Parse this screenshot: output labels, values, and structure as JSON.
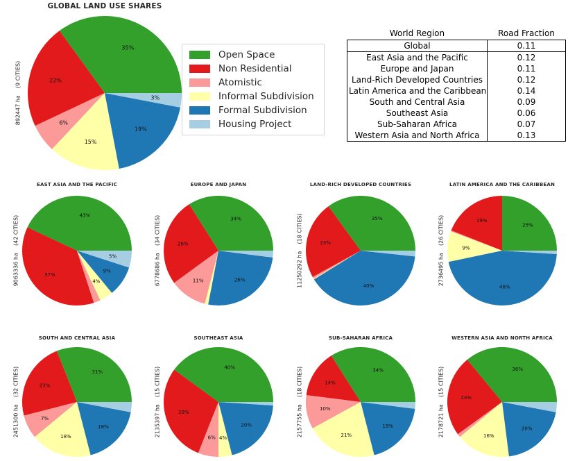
{
  "slice_colors": [
    "#33a02c",
    "#e31a1c",
    "#fb9a99",
    "#ffffa8",
    "#1f78b4",
    "#a6cee3"
  ],
  "legend": {
    "items": [
      {
        "label": "Open Space",
        "color": "#33a02c"
      },
      {
        "label": "Non Residential",
        "color": "#e31a1c"
      },
      {
        "label": "Atomistic",
        "color": "#fb9a99"
      },
      {
        "label": "Informal Subdivision",
        "color": "#ffffa8"
      },
      {
        "label": "Formal Subdivision",
        "color": "#1f78b4"
      },
      {
        "label": "Housing Project",
        "color": "#a6cee3"
      }
    ]
  },
  "table": {
    "headers": [
      "World Region",
      "Road Fraction"
    ],
    "rows": [
      [
        "Global",
        "0.11"
      ],
      [
        "East Asia and the Pacific",
        "0.12"
      ],
      [
        "Europe and Japan",
        "0.11"
      ],
      [
        "Land-Rich Developed Countries",
        "0.12"
      ],
      [
        "Latin America and the Caribbean",
        "0.14"
      ],
      [
        "South and Central Asia",
        "0.09"
      ],
      [
        "Southeast Asia",
        "0.06"
      ],
      [
        "Sub-Saharan Africa",
        "0.07"
      ],
      [
        "Western Asia and North Africa",
        "0.13"
      ]
    ]
  },
  "chart_data": [
    {
      "type": "pie",
      "title": "GLOBAL LAND USE SHARES",
      "ylabel": "892447 ha    (9 CITIES)",
      "categories": [
        "Open Space",
        "Non Residential",
        "Atomistic",
        "Informal Subdivision",
        "Formal Subdivision",
        "Housing Project"
      ],
      "values": [
        35,
        22,
        6,
        15,
        19,
        3
      ],
      "labels": [
        "35%",
        "22%",
        "6%",
        "15%",
        "19%",
        "3%"
      ],
      "start_angle_deg": 0,
      "direction": "counterclockwise"
    },
    {
      "type": "pie",
      "title": "EAST ASIA AND THE PACIFIC",
      "ylabel": "9063336 ha    (42 CITIES)",
      "categories": [
        "Open Space",
        "Non Residential",
        "Atomistic",
        "Informal Subdivision",
        "Formal Subdivision",
        "Housing Project"
      ],
      "values": [
        43,
        37,
        2,
        4,
        9,
        5
      ],
      "labels": [
        "43%",
        "37%",
        "",
        "4%",
        "9%",
        "5%"
      ],
      "start_angle_deg": 0,
      "direction": "counterclockwise"
    },
    {
      "type": "pie",
      "title": "EUROPE AND JAPAN",
      "ylabel": "6778686 ha    (34 CITIES)",
      "categories": [
        "Open Space",
        "Non Residential",
        "Atomistic",
        "Informal Subdivision",
        "Formal Subdivision",
        "Housing Project"
      ],
      "values": [
        34,
        26,
        11,
        1,
        26,
        2
      ],
      "labels": [
        "34%",
        "26%",
        "11%",
        "",
        "26%",
        ""
      ],
      "start_angle_deg": 0,
      "direction": "counterclockwise"
    },
    {
      "type": "pie",
      "title": "LAND-RICH DEVELOPED COUNTRIES",
      "ylabel": "11250292 ha    (18 CITIES)",
      "categories": [
        "Open Space",
        "Non Residential",
        "Atomistic",
        "Informal Subdivision",
        "Formal Subdivision",
        "Housing Project"
      ],
      "values": [
        35,
        23,
        0.6,
        0.2,
        39.5,
        1.7
      ],
      "labels": [
        "35%",
        "23%",
        "",
        "",
        "40%",
        ""
      ],
      "start_angle_deg": 0,
      "direction": "counterclockwise"
    },
    {
      "type": "pie",
      "title": "LATIN AMERICA AND THE CARIBBEAN",
      "ylabel": "2736495 ha    (26 CITIES)",
      "categories": [
        "Open Space",
        "Non Residential",
        "Atomistic",
        "Informal Subdivision",
        "Formal Subdivision",
        "Housing Project"
      ],
      "values": [
        25,
        19,
        0.3,
        9,
        45.7,
        1
      ],
      "labels": [
        "25%",
        "19%",
        "",
        "9%",
        "46%",
        ""
      ],
      "start_angle_deg": 0,
      "direction": "counterclockwise"
    },
    {
      "type": "pie",
      "title": "SOUTH AND CENTRAL ASIA",
      "ylabel": "2451300 ha    (32 CITIES)",
      "categories": [
        "Open Space",
        "Non Residential",
        "Atomistic",
        "Informal Subdivision",
        "Formal Subdivision",
        "Housing Project"
      ],
      "values": [
        31,
        23,
        7,
        18,
        18,
        3
      ],
      "labels": [
        "31%",
        "23%",
        "7%",
        "18%",
        "18%",
        ""
      ],
      "start_angle_deg": 0,
      "direction": "counterclockwise"
    },
    {
      "type": "pie",
      "title": "SOUTHEAST ASIA",
      "ylabel": "2135397 ha    (15 CITIES)",
      "categories": [
        "Open Space",
        "Non Residential",
        "Atomistic",
        "Informal Subdivision",
        "Formal Subdivision",
        "Housing Project"
      ],
      "values": [
        40,
        29,
        6,
        4,
        20,
        1
      ],
      "labels": [
        "40%",
        "29%",
        "6%",
        "4%",
        "20%",
        ""
      ],
      "start_angle_deg": 0,
      "direction": "counterclockwise"
    },
    {
      "type": "pie",
      "title": "SUB-SAHARAN AFRICA",
      "ylabel": "2157755 ha    (18 CITIES)",
      "categories": [
        "Open Space",
        "Non Residential",
        "Atomistic",
        "Informal Subdivision",
        "Formal Subdivision",
        "Housing Project"
      ],
      "values": [
        34,
        14,
        10,
        21,
        19,
        2
      ],
      "labels": [
        "34%",
        "14%",
        "10%",
        "21%",
        "19%",
        ""
      ],
      "start_angle_deg": 0,
      "direction": "counterclockwise"
    },
    {
      "type": "pie",
      "title": "WESTERN ASIA AND NORTH AFRICA",
      "ylabel": "2178721 ha    (15 CITIES)",
      "categories": [
        "Open Space",
        "Non Residential",
        "Atomistic",
        "Informal Subdivision",
        "Formal Subdivision",
        "Housing Project"
      ],
      "values": [
        36,
        24,
        1,
        16,
        20,
        3
      ],
      "labels": [
        "36%",
        "24%",
        "",
        "16%",
        "20%",
        ""
      ],
      "start_angle_deg": 0,
      "direction": "counterclockwise"
    }
  ]
}
